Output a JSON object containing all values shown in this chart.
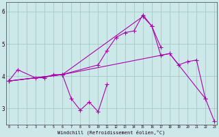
{
  "xlabel": "Windchill (Refroidissement éolien,°C)",
  "bg_color": "#cce8e8",
  "line_color": "#aa00aa",
  "xlim": [
    -0.3,
    23.3
  ],
  "ylim": [
    2.5,
    6.3
  ],
  "yticks": [
    3,
    4,
    5,
    6
  ],
  "xticks": [
    0,
    1,
    2,
    3,
    4,
    5,
    6,
    7,
    8,
    9,
    10,
    11,
    12,
    13,
    14,
    15,
    16,
    17,
    18,
    19,
    20,
    21,
    22,
    23
  ],
  "series": [
    {
      "x": [
        0,
        1,
        3,
        4,
        5,
        6,
        7,
        8,
        9,
        10,
        11
      ],
      "y": [
        3.85,
        4.2,
        3.95,
        3.95,
        4.05,
        4.05,
        3.3,
        2.95,
        3.2,
        2.9,
        3.75
      ]
    },
    {
      "x": [
        0,
        6,
        10,
        11,
        12,
        13,
        14,
        15,
        16,
        17
      ],
      "y": [
        3.85,
        4.05,
        4.35,
        4.8,
        5.2,
        5.35,
        5.4,
        5.9,
        5.55,
        4.9
      ]
    },
    {
      "x": [
        0,
        6,
        15,
        16,
        17,
        18,
        19,
        20,
        21,
        22
      ],
      "y": [
        3.85,
        4.05,
        5.85,
        5.55,
        4.65,
        4.7,
        4.35,
        4.45,
        4.5,
        3.3
      ]
    },
    {
      "x": [
        0,
        6,
        18,
        22,
        23
      ],
      "y": [
        3.85,
        4.05,
        4.7,
        3.3,
        2.6
      ]
    }
  ]
}
